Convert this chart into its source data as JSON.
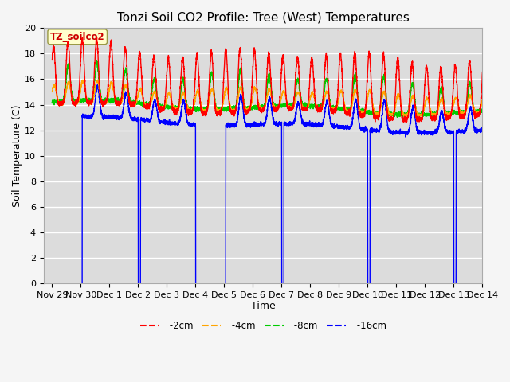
{
  "title": "Tonzi Soil CO2 Profile: Tree (West) Temperatures",
  "xlabel": "Time",
  "ylabel": "Soil Temperature (C)",
  "ylim": [
    0,
    20
  ],
  "background_color": "#dcdcdc",
  "legend_label": "TZ_soilco2",
  "line_colors": {
    "-2cm": "#ff0000",
    "-4cm": "#ffa500",
    "-8cm": "#00cc00",
    "-16cm": "#0000ff"
  },
  "x_tick_labels": [
    "Nov 29",
    "Nov 30",
    "Dec 1",
    "Dec 2",
    "Dec 3",
    "Dec 4",
    "Dec 5",
    "Dec 6",
    "Dec 7",
    "Dec 8",
    "Dec 9",
    "Dec 10",
    "Dec 11",
    "Dec 12",
    "Dec 13",
    "Dec 14"
  ],
  "title_fontsize": 11,
  "axis_fontsize": 9,
  "tick_fontsize": 8
}
